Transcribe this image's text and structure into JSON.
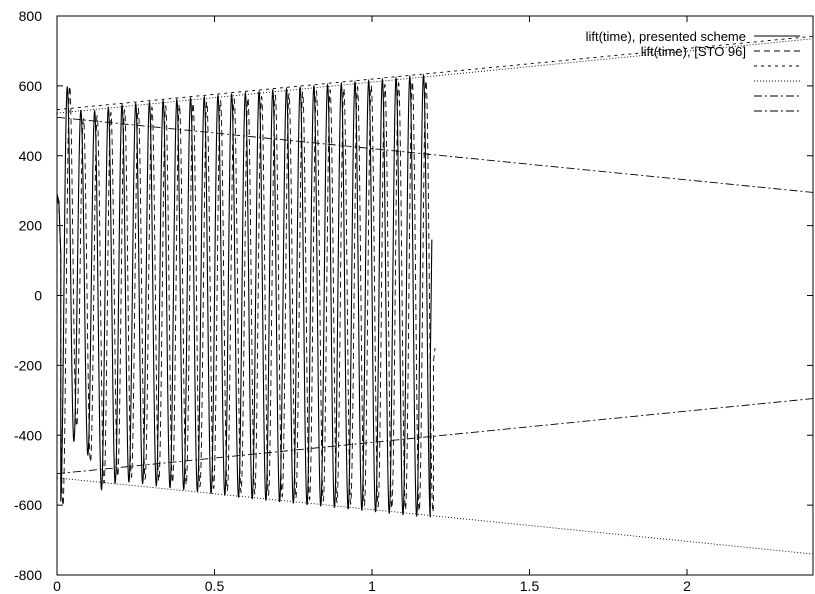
{
  "chart_data": {
    "type": "line",
    "title": "",
    "xlabel": "",
    "ylabel": "",
    "xlim": [
      0,
      2.4
    ],
    "ylim": [
      -800,
      800
    ],
    "x_ticks": [
      0,
      0.5,
      1,
      1.5,
      2
    ],
    "x_tick_labels": [
      "0",
      "0.5",
      "1",
      "1.5",
      "2"
    ],
    "y_ticks": [
      -800,
      -600,
      -400,
      -200,
      0,
      200,
      400,
      600,
      800
    ],
    "y_tick_labels": [
      "-800",
      "-600",
      "-400",
      "-200",
      "0",
      "200",
      "400",
      "600",
      "800"
    ],
    "grid": false,
    "legend": {
      "position": "top-right",
      "entries": [
        {
          "label": "lift(time), presented scheme",
          "dash": "solid"
        },
        {
          "label": "lift(time), [STO 96]",
          "dash": "dashed"
        },
        {
          "label": "",
          "dash": "dashed-short"
        },
        {
          "label": "",
          "dash": "dotted"
        },
        {
          "label": "",
          "dash": "dashdot"
        },
        {
          "label": "",
          "dash": "dashdot"
        }
      ]
    },
    "series": [
      {
        "name": "lift(time), presented scheme",
        "kind": "oscillation",
        "dash": "solid",
        "x_range": [
          0,
          1.19
        ],
        "period": 0.0435,
        "phase": -0.0035,
        "peaks_x": [
          0.036,
          0.085,
          0.13,
          0.175,
          0.22,
          0.265,
          0.31,
          0.355,
          0.4,
          0.445,
          0.49,
          0.535,
          0.58,
          0.625,
          0.67,
          0.715,
          0.76,
          0.805,
          0.85,
          0.895,
          0.94,
          0.985,
          1.03,
          1.075,
          1.12,
          1.165
        ],
        "upper_env": [
          [
            0,
            530
          ],
          [
            0.04,
            612
          ],
          [
            0.08,
            520
          ],
          [
            0.2,
            545
          ],
          [
            0.6,
            580
          ],
          [
            1.16,
            630
          ]
        ],
        "lower_env": [
          [
            0,
            -560
          ],
          [
            0.02,
            -625
          ],
          [
            0.06,
            -380
          ],
          [
            0.1,
            -460
          ],
          [
            0.12,
            -565
          ],
          [
            0.2,
            -530
          ],
          [
            0.6,
            -580
          ],
          [
            1.18,
            -635
          ]
        ],
        "start": [
          [
            0,
            290
          ],
          [
            0.006,
            270
          ],
          [
            0.012,
            120
          ]
        ],
        "end": [
          [
            1.185,
            -200
          ],
          [
            1.19,
            160
          ]
        ]
      },
      {
        "name": "lift(time), [STO 96]",
        "kind": "oscillation",
        "dash": "dashed",
        "x_range": [
          0,
          1.2
        ],
        "period": 0.0435,
        "phase": 0.0045,
        "upper_env": [
          [
            0,
            510
          ],
          [
            0.04,
            600
          ],
          [
            0.08,
            505
          ],
          [
            0.2,
            530
          ],
          [
            0.6,
            565
          ],
          [
            1.16,
            615
          ]
        ],
        "lower_env": [
          [
            0,
            -540
          ],
          [
            0.02,
            -605
          ],
          [
            0.06,
            -370
          ],
          [
            0.1,
            -445
          ],
          [
            0.12,
            -550
          ],
          [
            0.2,
            -515
          ],
          [
            0.6,
            -565
          ],
          [
            1.18,
            -620
          ]
        ],
        "start": [
          [
            0,
            280
          ],
          [
            0.006,
            255
          ],
          [
            0.012,
            110
          ]
        ],
        "end": [
          [
            1.195,
            -190
          ],
          [
            1.2,
            -150
          ]
        ]
      },
      {
        "name": "",
        "kind": "line",
        "dash": "dashed-short",
        "points": [
          [
            0,
            532
          ],
          [
            2.4,
            742
          ]
        ]
      },
      {
        "name": "",
        "kind": "line",
        "dash": "dotted",
        "points": [
          [
            0,
            522
          ],
          [
            2.4,
            735
          ]
        ]
      },
      {
        "name": "",
        "kind": "line",
        "dash": "dotted",
        "points": [
          [
            0,
            -522
          ],
          [
            2.4,
            -740
          ]
        ]
      },
      {
        "name": "",
        "kind": "line",
        "dash": "dashdot",
        "points": [
          [
            0,
            510
          ],
          [
            2.4,
            295
          ]
        ]
      },
      {
        "name": "",
        "kind": "line",
        "dash": "dashdot",
        "points": [
          [
            0,
            -510
          ],
          [
            2.4,
            -295
          ]
        ]
      }
    ]
  }
}
